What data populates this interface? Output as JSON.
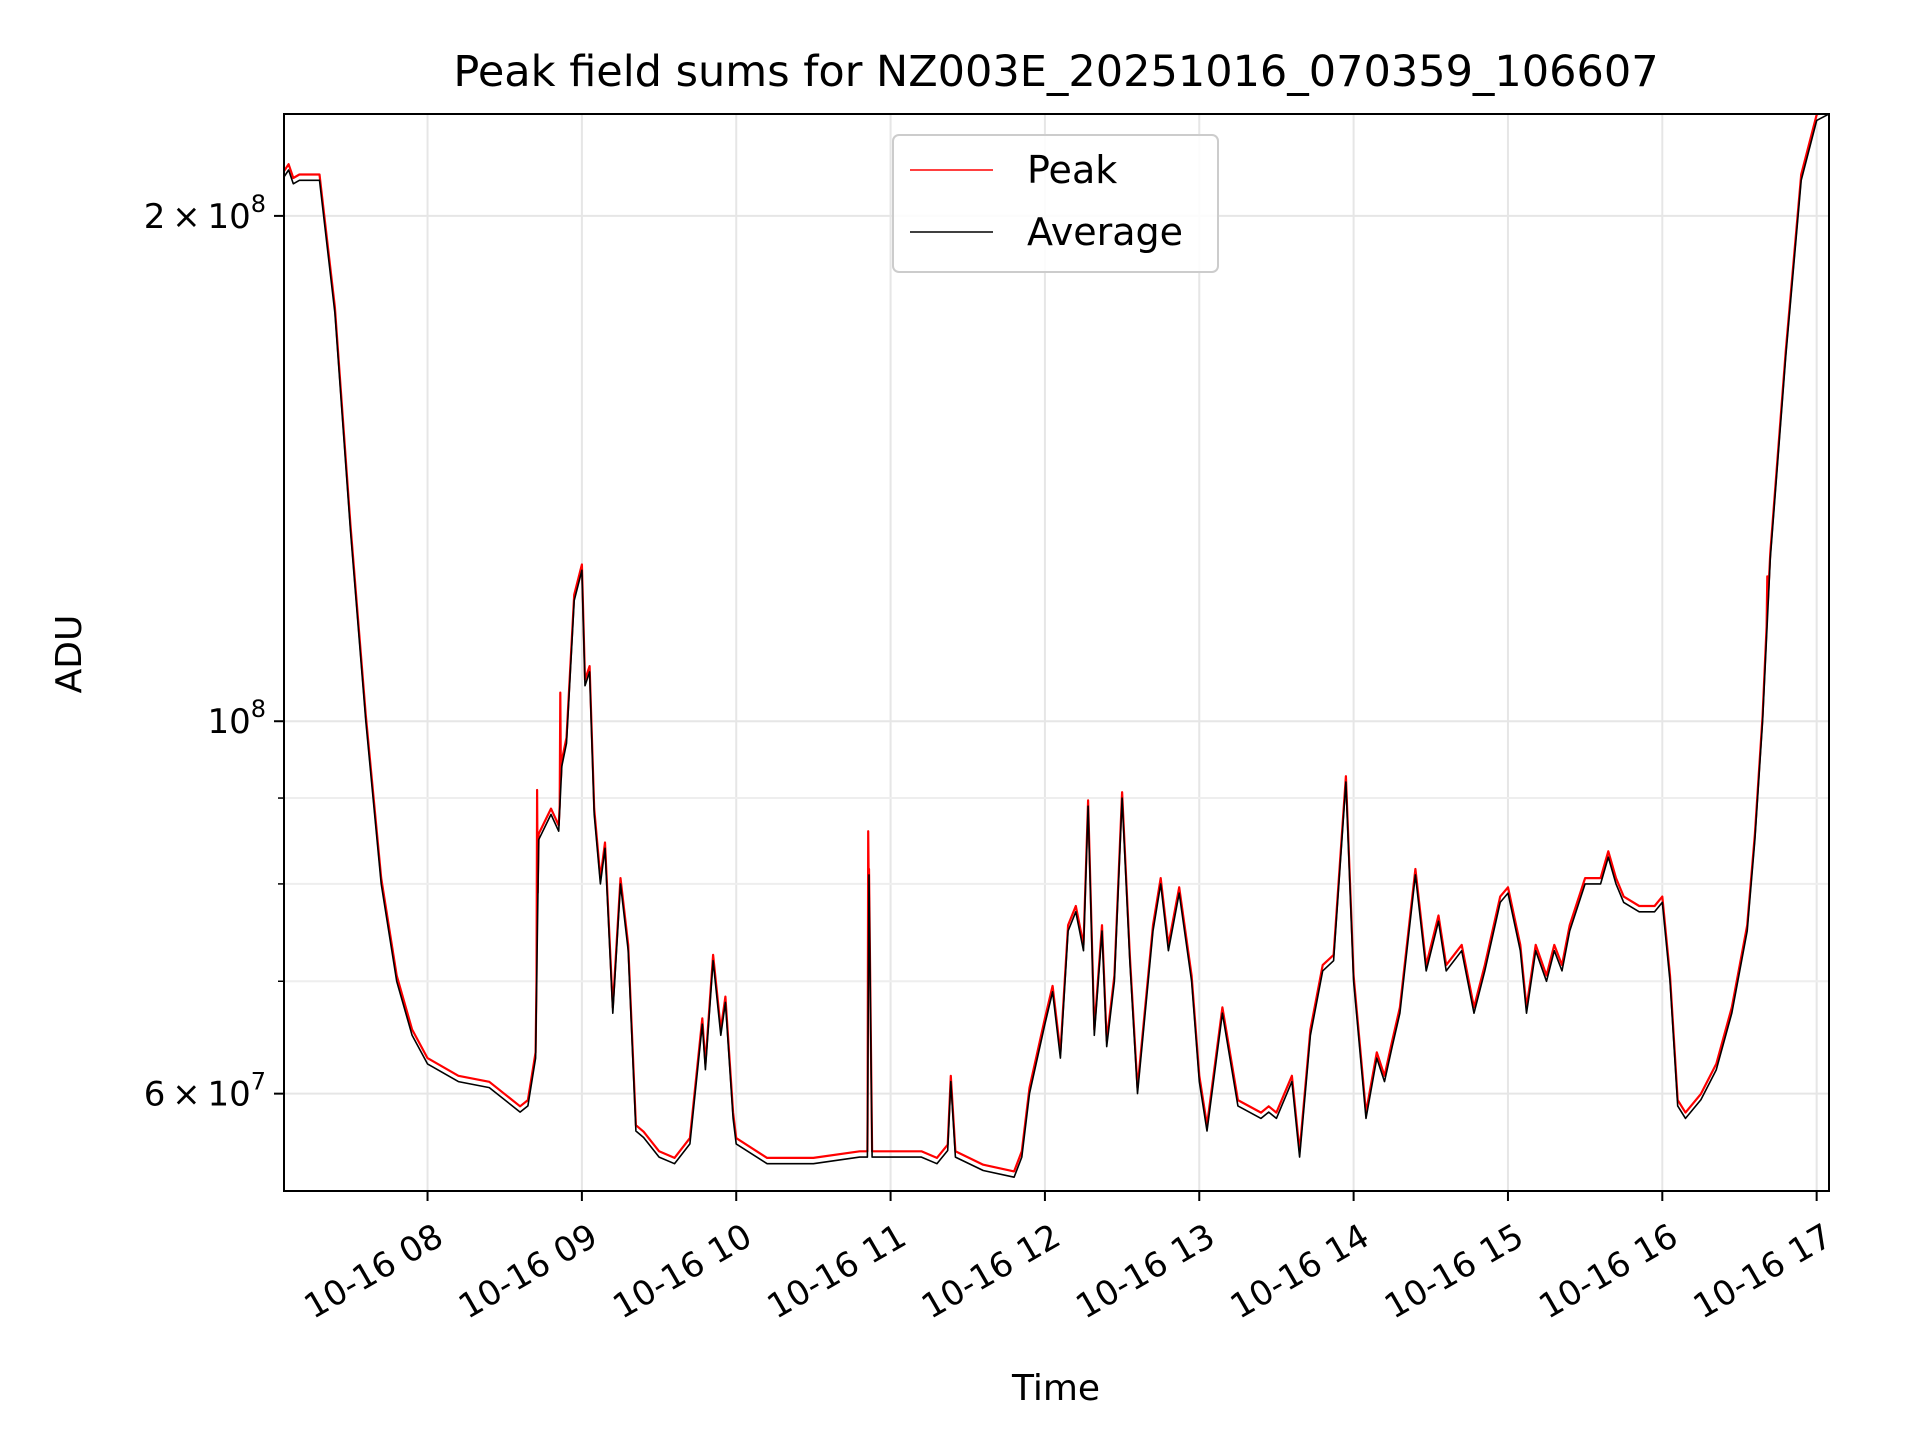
{
  "chart_data": {
    "type": "line",
    "title": "Peak field sums for NZ003E_20251016_070359_106607",
    "xlabel": "Time",
    "ylabel": "ADU",
    "yscale": "log",
    "xlim": [
      7.07,
      17.08
    ],
    "ylim": [
      52500000,
      230000000
    ],
    "grid": true,
    "legend_position": "upper center",
    "x_tick_values": [
      8,
      9,
      10,
      11,
      12,
      13,
      14,
      15,
      16,
      17
    ],
    "x_tick_labels": [
      "10-16 08",
      "10-16 09",
      "10-16 10",
      "10-16 11",
      "10-16 12",
      "10-16 13",
      "10-16 14",
      "10-16 15",
      "10-16 16",
      "10-16 17"
    ],
    "y_major_ticks": [
      {
        "value": 200000000,
        "label_base": "2 × 10",
        "label_exp": "8"
      },
      {
        "value": 100000000,
        "label_base": "10",
        "label_exp": "8"
      },
      {
        "value": 60000000,
        "label_base": "6 × 10",
        "label_exp": "7"
      }
    ],
    "y_minor_ticks": [
      70000000,
      80000000,
      90000000
    ],
    "x_unit": "hours since 2025-10-16 00:00",
    "average_xy": [
      [
        7.07,
        211000000
      ],
      [
        7.1,
        213000000
      ],
      [
        7.13,
        209000000
      ],
      [
        7.17,
        210000000
      ],
      [
        7.3,
        210000000
      ],
      [
        7.4,
        175000000
      ],
      [
        7.5,
        130000000
      ],
      [
        7.6,
        100000000
      ],
      [
        7.7,
        80000000
      ],
      [
        7.8,
        70000000
      ],
      [
        7.9,
        65000000
      ],
      [
        8.0,
        62500000
      ],
      [
        8.2,
        61000000
      ],
      [
        8.4,
        60500000
      ],
      [
        8.6,
        58500000
      ],
      [
        8.65,
        59000000
      ],
      [
        8.7,
        63000000
      ],
      [
        8.72,
        85000000
      ],
      [
        8.8,
        88000000
      ],
      [
        8.85,
        86000000
      ],
      [
        8.87,
        94000000
      ],
      [
        8.9,
        97000000
      ],
      [
        8.95,
        118000000
      ],
      [
        9.0,
        123000000
      ],
      [
        9.02,
        105000000
      ],
      [
        9.05,
        107000000
      ],
      [
        9.08,
        88000000
      ],
      [
        9.12,
        80000000
      ],
      [
        9.15,
        84000000
      ],
      [
        9.2,
        67000000
      ],
      [
        9.25,
        80000000
      ],
      [
        9.3,
        73000000
      ],
      [
        9.35,
        57000000
      ],
      [
        9.4,
        56500000
      ],
      [
        9.5,
        55000000
      ],
      [
        9.6,
        54500000
      ],
      [
        9.7,
        56000000
      ],
      [
        9.75,
        62000000
      ],
      [
        9.78,
        66000000
      ],
      [
        9.8,
        62000000
      ],
      [
        9.85,
        72000000
      ],
      [
        9.9,
        65000000
      ],
      [
        9.93,
        68000000
      ],
      [
        9.98,
        58000000
      ],
      [
        10.0,
        56000000
      ],
      [
        10.2,
        54500000
      ],
      [
        10.5,
        54500000
      ],
      [
        10.8,
        55000000
      ],
      [
        10.85,
        55000000
      ],
      [
        10.86,
        81000000
      ],
      [
        10.88,
        55000000
      ],
      [
        11.0,
        55000000
      ],
      [
        11.2,
        55000000
      ],
      [
        11.3,
        54500000
      ],
      [
        11.37,
        55500000
      ],
      [
        11.39,
        61000000
      ],
      [
        11.42,
        55000000
      ],
      [
        11.6,
        54000000
      ],
      [
        11.8,
        53500000
      ],
      [
        11.85,
        55000000
      ],
      [
        11.9,
        60000000
      ],
      [
        12.0,
        66000000
      ],
      [
        12.05,
        69000000
      ],
      [
        12.1,
        63000000
      ],
      [
        12.15,
        75000000
      ],
      [
        12.2,
        77000000
      ],
      [
        12.25,
        73000000
      ],
      [
        12.28,
        89000000
      ],
      [
        12.32,
        65000000
      ],
      [
        12.37,
        75000000
      ],
      [
        12.4,
        64000000
      ],
      [
        12.45,
        70000000
      ],
      [
        12.5,
        90000000
      ],
      [
        12.55,
        72000000
      ],
      [
        12.6,
        60000000
      ],
      [
        12.7,
        75000000
      ],
      [
        12.75,
        80000000
      ],
      [
        12.8,
        73000000
      ],
      [
        12.87,
        79000000
      ],
      [
        12.95,
        70000000
      ],
      [
        13.0,
        61000000
      ],
      [
        13.05,
        57000000
      ],
      [
        13.15,
        67000000
      ],
      [
        13.25,
        59000000
      ],
      [
        13.4,
        58000000
      ],
      [
        13.45,
        58500000
      ],
      [
        13.5,
        58000000
      ],
      [
        13.6,
        61000000
      ],
      [
        13.65,
        55000000
      ],
      [
        13.72,
        65000000
      ],
      [
        13.8,
        71000000
      ],
      [
        13.87,
        72000000
      ],
      [
        13.95,
        92000000
      ],
      [
        14.0,
        70000000
      ],
      [
        14.08,
        58000000
      ],
      [
        14.15,
        63000000
      ],
      [
        14.2,
        61000000
      ],
      [
        14.25,
        64000000
      ],
      [
        14.3,
        67000000
      ],
      [
        14.4,
        81000000
      ],
      [
        14.47,
        71000000
      ],
      [
        14.55,
        76000000
      ],
      [
        14.6,
        71000000
      ],
      [
        14.7,
        73000000
      ],
      [
        14.78,
        67000000
      ],
      [
        14.85,
        71000000
      ],
      [
        14.95,
        78000000
      ],
      [
        15.0,
        79000000
      ],
      [
        15.08,
        73000000
      ],
      [
        15.12,
        67000000
      ],
      [
        15.18,
        73000000
      ],
      [
        15.25,
        70000000
      ],
      [
        15.3,
        73000000
      ],
      [
        15.35,
        71000000
      ],
      [
        15.4,
        75000000
      ],
      [
        15.5,
        80000000
      ],
      [
        15.6,
        80000000
      ],
      [
        15.65,
        83000000
      ],
      [
        15.7,
        80000000
      ],
      [
        15.75,
        78000000
      ],
      [
        15.85,
        77000000
      ],
      [
        15.95,
        77000000
      ],
      [
        16.0,
        78000000
      ],
      [
        16.05,
        70000000
      ],
      [
        16.1,
        59000000
      ],
      [
        16.15,
        58000000
      ],
      [
        16.25,
        59500000
      ],
      [
        16.35,
        62000000
      ],
      [
        16.45,
        67000000
      ],
      [
        16.55,
        75000000
      ],
      [
        16.6,
        85000000
      ],
      [
        16.65,
        100000000
      ],
      [
        16.7,
        125000000
      ],
      [
        16.8,
        165000000
      ],
      [
        16.9,
        210000000
      ],
      [
        17.0,
        228000000
      ],
      [
        17.08,
        230000000
      ]
    ],
    "series": [
      {
        "name": "Peak",
        "color": "#ff0000",
        "offset_factor": 1.008,
        "spikes": [
          [
            8.71,
            91000000
          ],
          [
            8.86,
            104000000
          ],
          [
            10.855,
            86000000
          ],
          [
            16.68,
            122000000
          ]
        ]
      },
      {
        "name": "Average",
        "color": "#000000",
        "offset_factor": 1.0,
        "spikes": []
      }
    ]
  }
}
